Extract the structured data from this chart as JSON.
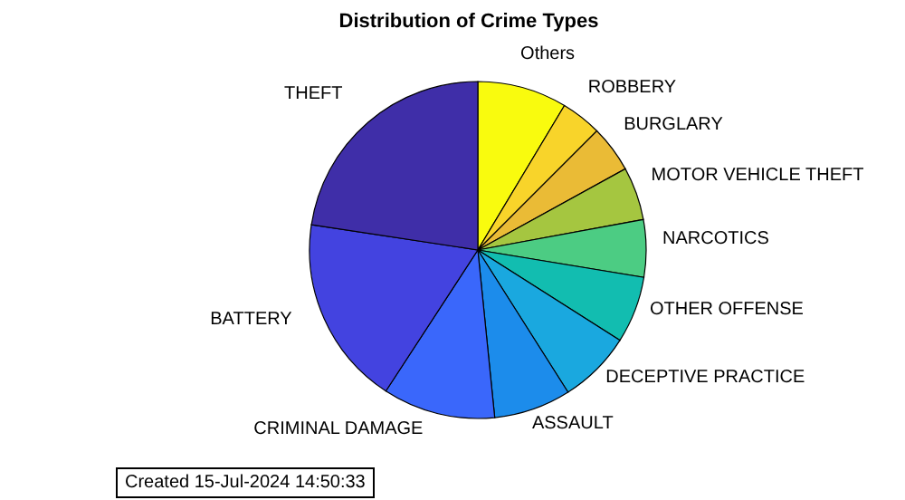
{
  "chart_data": {
    "type": "pie",
    "title": "Distribution of Crime Types",
    "categories": [
      "Others",
      "ROBBERY",
      "BURGLARY",
      "MOTOR VEHICLE THEFT",
      "NARCOTICS",
      "OTHER OFFENSE",
      "DECEPTIVE PRACTICE",
      "ASSAULT",
      "CRIMINAL DAMAGE",
      "BATTERY",
      "THEFT"
    ],
    "values": [
      8.6,
      3.9,
      4.5,
      5.1,
      5.5,
      6.4,
      7.0,
      7.4,
      10.8,
      18.2,
      22.6
    ],
    "colors": [
      "#f9fb0e",
      "#f8d42a",
      "#eabb36",
      "#a5c640",
      "#4ccc83",
      "#12bdb0",
      "#1aa8df",
      "#1c8ceb",
      "#3a67fb",
      "#4343e0",
      "#3f2ea8"
    ],
    "annotations": [
      "Created 15-Jul-2024 14:50:33"
    ],
    "legend": false
  }
}
